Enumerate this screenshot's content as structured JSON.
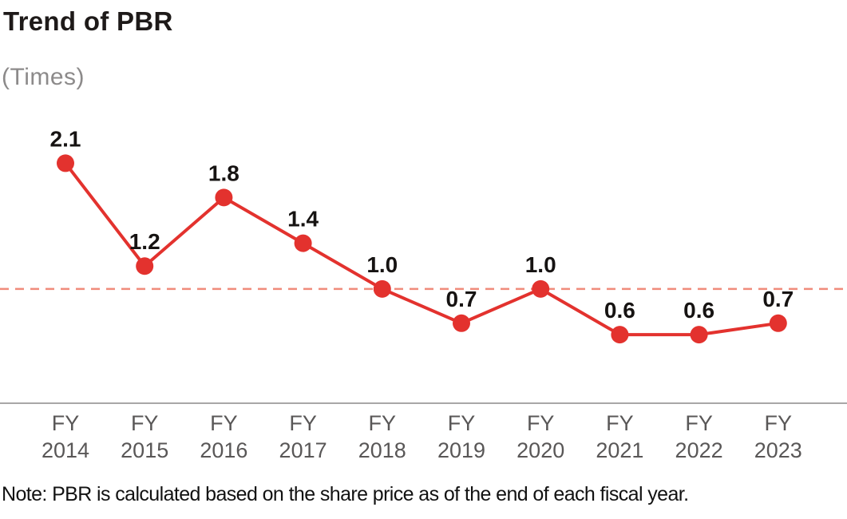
{
  "title": "Trend of PBR",
  "unit_label": "(Times)",
  "note": "Note: PBR is calculated based on the share price as of the end of each fiscal year.",
  "colors": {
    "line": "#e3322e",
    "marker": "#e3322e",
    "reference_line": "#f08b7b",
    "axis_line": "#8c8a8a",
    "tick_label": "#595757",
    "value_label": "#161312",
    "title_text": "#1e1a19",
    "unit_text": "#8c8a8a",
    "note_text": "#121212"
  },
  "chart_data": {
    "type": "line",
    "title": "Trend of PBR",
    "ylabel": "(Times)",
    "xlabel": "",
    "categories": [
      {
        "top": "FY",
        "bottom": "2014"
      },
      {
        "top": "FY",
        "bottom": "2015"
      },
      {
        "top": "FY",
        "bottom": "2016"
      },
      {
        "top": "FY",
        "bottom": "2017"
      },
      {
        "top": "FY",
        "bottom": "2018"
      },
      {
        "top": "FY",
        "bottom": "2019"
      },
      {
        "top": "FY",
        "bottom": "2020"
      },
      {
        "top": "FY",
        "bottom": "2021"
      },
      {
        "top": "FY",
        "bottom": "2022"
      },
      {
        "top": "FY",
        "bottom": "2023"
      }
    ],
    "values": [
      2.1,
      1.2,
      1.8,
      1.4,
      1.0,
      0.7,
      1.0,
      0.6,
      0.6,
      0.7
    ],
    "value_labels": [
      "2.1",
      "1.2",
      "1.8",
      "1.4",
      "1.0",
      "0.7",
      "1.0",
      "0.6",
      "0.6",
      "0.7"
    ],
    "reference_line": {
      "value": 1.0,
      "style": "dashed"
    },
    "ylim": [
      0,
      2.55
    ],
    "grid": false,
    "legend": "none"
  }
}
